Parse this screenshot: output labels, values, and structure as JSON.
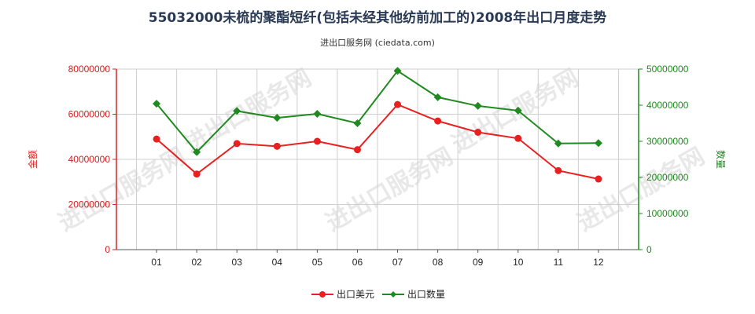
{
  "chart_data": {
    "type": "line",
    "title": "55032000未梳的聚酯短纤(包括未经其他纺前加工的)2008年出口月度走势",
    "subtitle": "进出口服务网 (ciedata.com)",
    "watermark": "进出口服务网",
    "categories": [
      "01",
      "02",
      "03",
      "04",
      "05",
      "06",
      "07",
      "08",
      "09",
      "10",
      "11",
      "12"
    ],
    "y_left": {
      "label": "金额",
      "min": 0,
      "max": 80000000,
      "ticks": [
        "0",
        "20000000",
        "40000000",
        "60000000",
        "80000000"
      ],
      "color": "#e02020"
    },
    "y_right": {
      "label": "数量",
      "min": 0,
      "max": 50000000,
      "ticks": [
        "0",
        "10000000",
        "20000000",
        "30000000",
        "40000000",
        "50000000"
      ],
      "color": "#1f8a1f"
    },
    "series": [
      {
        "name": "出口美元",
        "axis": "left",
        "color": "#e82020",
        "values": [
          49000000,
          33500000,
          47000000,
          45800000,
          48000000,
          44300000,
          64300000,
          57000000,
          52000000,
          49300000,
          35000000,
          31300000
        ]
      },
      {
        "name": "出口数量",
        "axis": "right",
        "color": "#1f8a1f",
        "values": [
          40400000,
          27000000,
          38400000,
          36500000,
          37600000,
          35000000,
          49500000,
          42200000,
          39800000,
          38500000,
          29400000,
          29500000
        ]
      }
    ],
    "grid": true,
    "legend_position": "bottom-center"
  }
}
